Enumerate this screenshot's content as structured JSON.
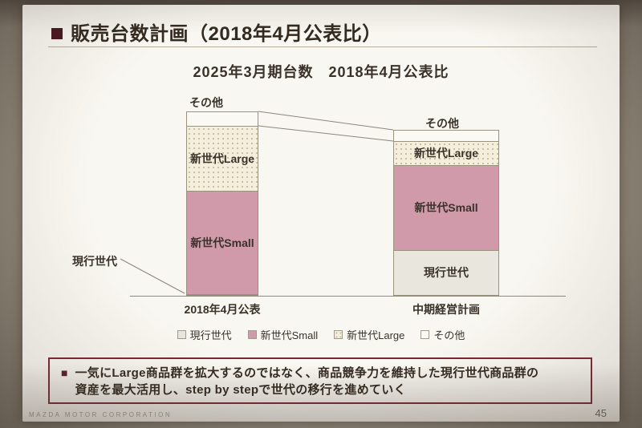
{
  "slide": {
    "title": "販売台数計画（2018年4月公表比）",
    "subtitle": "2025年3月期台数　2018年4月公表比",
    "footer_company": "MAZDA MOTOR CORPORATION",
    "page_number": "45"
  },
  "chart_data": {
    "type": "bar",
    "stacked": true,
    "title": "2025年3月期台数 2018年4月公表比",
    "categories": [
      "2018年4月公表",
      "中期経営計画"
    ],
    "series": [
      {
        "name": "現行世代",
        "values": [
          1,
          25
        ],
        "color": "#e9e6de",
        "pattern": "solid"
      },
      {
        "name": "新世代Small",
        "values": [
          56,
          46
        ],
        "color": "#d09aab",
        "pattern": "solid"
      },
      {
        "name": "新世代Large",
        "values": [
          35,
          13
        ],
        "color": "#f4eedc",
        "pattern": "dots"
      },
      {
        "name": "その他",
        "values": [
          8,
          6
        ],
        "color": "#fbf9f3",
        "pattern": "solid"
      }
    ],
    "value_note": "relative volume share estimated from bar heights (2018 April plan total = 100)",
    "legend_position": "bottom",
    "grid": false
  },
  "callout": {
    "bullet": "■",
    "line1": "一気にLarge商品群を拡大するのではなく、商品競争力を維持した現行世代商品群の",
    "line2": "資産を最大活用し、step by stepで世代の移行を進めていく"
  },
  "colors": {
    "accent_maroon": "#7c2633",
    "title_text": "#332a20",
    "background_wall": "#8d8478",
    "slide_bg": "#f9f7f1"
  }
}
